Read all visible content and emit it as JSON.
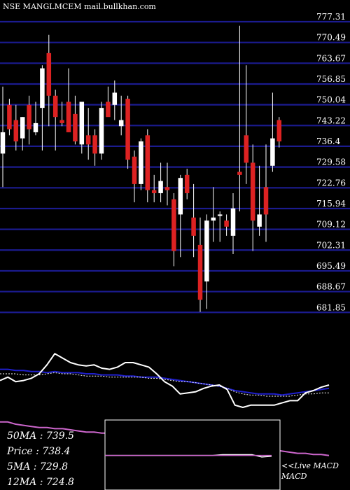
{
  "header": {
    "title": "NSE MANGLMCEM mail.bullkhan.com"
  },
  "chart_data": [
    {
      "type": "candlestick",
      "title": "NSE MANGLMCEM mail.bullkhan.com",
      "ylim": [
        678,
        778
      ],
      "y_ticks": [
        "777.31",
        "770.49",
        "763.67",
        "756.85",
        "750.04",
        "743.22",
        "736.4",
        "729.58",
        "722.76",
        "715.94",
        "709.12",
        "702.31",
        "695.49",
        "688.67",
        "681.85"
      ],
      "grid": true,
      "candles": [
        {
          "open": 734,
          "high": 756,
          "low": 723,
          "close": 741,
          "color": "white"
        },
        {
          "open": 750,
          "high": 752,
          "low": 740,
          "close": 742,
          "color": "red"
        },
        {
          "open": 745,
          "high": 750,
          "low": 735,
          "close": 738,
          "color": "red"
        },
        {
          "open": 739,
          "high": 746,
          "low": 735,
          "close": 746,
          "color": "white"
        },
        {
          "open": 750,
          "high": 753,
          "low": 737,
          "close": 742,
          "color": "red"
        },
        {
          "open": 741,
          "high": 751,
          "low": 740,
          "close": 744,
          "color": "white"
        },
        {
          "open": 749,
          "high": 763,
          "low": 735,
          "close": 762,
          "color": "white"
        },
        {
          "open": 767,
          "high": 773,
          "low": 743,
          "close": 753,
          "color": "red"
        },
        {
          "open": 753,
          "high": 755,
          "low": 735,
          "close": 746,
          "color": "red"
        },
        {
          "open": 744,
          "high": 751,
          "low": 743,
          "close": 745,
          "color": "red"
        },
        {
          "open": 751,
          "high": 762,
          "low": 741,
          "close": 741,
          "color": "red"
        },
        {
          "open": 747,
          "high": 753,
          "low": 737,
          "close": 738,
          "color": "red"
        },
        {
          "open": 737,
          "high": 750,
          "low": 734,
          "close": 751,
          "color": "white"
        },
        {
          "open": 737,
          "high": 749,
          "low": 732,
          "close": 740,
          "color": "red"
        },
        {
          "open": 740,
          "high": 742,
          "low": 730,
          "close": 734,
          "color": "red"
        },
        {
          "open": 734,
          "high": 751,
          "low": 732,
          "close": 749,
          "color": "white"
        },
        {
          "open": 751,
          "high": 756,
          "low": 747,
          "close": 746,
          "color": "red"
        },
        {
          "open": 750,
          "high": 758,
          "low": 745,
          "close": 754,
          "color": "white"
        },
        {
          "open": 745,
          "high": 753,
          "low": 740,
          "close": 743,
          "color": "white"
        },
        {
          "open": 752,
          "high": 753,
          "low": 729,
          "close": 732,
          "color": "red"
        },
        {
          "open": 733,
          "high": 735,
          "low": 718,
          "close": 724,
          "color": "red"
        },
        {
          "open": 724,
          "high": 739,
          "low": 722,
          "close": 738,
          "color": "white"
        },
        {
          "open": 740,
          "high": 742,
          "low": 718,
          "close": 722,
          "color": "red"
        },
        {
          "open": 722,
          "high": 727,
          "low": 718,
          "close": 721,
          "color": "red"
        },
        {
          "open": 725,
          "high": 731,
          "low": 718,
          "close": 721,
          "color": "white"
        },
        {
          "open": 723,
          "high": 731,
          "low": 717,
          "close": 722,
          "color": "red"
        },
        {
          "open": 719,
          "high": 721,
          "low": 697,
          "close": 702,
          "color": "red"
        },
        {
          "open": 714,
          "high": 727,
          "low": 700,
          "close": 726,
          "color": "white"
        },
        {
          "open": 727,
          "high": 729,
          "low": 719,
          "close": 721,
          "color": "red"
        },
        {
          "open": 713,
          "high": 724,
          "low": 700,
          "close": 707,
          "color": "red"
        },
        {
          "open": 704,
          "high": 713,
          "low": 682,
          "close": 686,
          "color": "red"
        },
        {
          "open": 692,
          "high": 714,
          "low": 683,
          "close": 712,
          "color": "white"
        },
        {
          "open": 712,
          "high": 723,
          "low": 705,
          "close": 713,
          "color": "white"
        },
        {
          "open": 714,
          "high": 715,
          "low": 705,
          "close": 714,
          "color": "white"
        },
        {
          "open": 712,
          "high": 714,
          "low": 707,
          "close": 710,
          "color": "red"
        },
        {
          "open": 707,
          "high": 721,
          "low": 701,
          "close": 716,
          "color": "white"
        },
        {
          "open": 727,
          "high": 776,
          "low": 715,
          "close": 728,
          "color": "red"
        },
        {
          "open": 740,
          "high": 763,
          "low": 724,
          "close": 731,
          "color": "red"
        },
        {
          "open": 731,
          "high": 737,
          "low": 702,
          "close": 712,
          "color": "red"
        },
        {
          "open": 710,
          "high": 730,
          "low": 707,
          "close": 714,
          "color": "white"
        },
        {
          "open": 723,
          "high": 737,
          "low": 705,
          "close": 714,
          "color": "red"
        },
        {
          "open": 730,
          "high": 754,
          "low": 728,
          "close": 739,
          "color": "white"
        },
        {
          "open": 745,
          "high": 746,
          "low": 736,
          "close": 738,
          "color": "red"
        }
      ]
    },
    {
      "type": "line",
      "panel": "moving-averages",
      "series": [
        {
          "color": "#cc66cc",
          "values": [
            83,
            83,
            85,
            86,
            87,
            88,
            88,
            89,
            89,
            90,
            91,
            92,
            92,
            93,
            93,
            94,
            94,
            95,
            95,
            96,
            96,
            97,
            98,
            98,
            99,
            100,
            101,
            101,
            102,
            103,
            104,
            105,
            106,
            107,
            108,
            108,
            109,
            110,
            111,
            111,
            112,
            112,
            113
          ]
        },
        {
          "color": "#1f1fcc",
          "values": [
            36,
            36,
            37,
            37,
            38,
            38,
            39,
            38,
            39,
            39,
            39,
            40,
            40,
            41,
            41,
            41,
            42,
            42,
            43,
            43,
            43,
            44,
            45,
            46,
            47,
            48,
            49,
            50,
            51,
            53,
            55,
            56,
            57,
            58,
            58,
            58,
            59,
            58,
            57,
            56,
            55,
            54,
            53
          ]
        },
        {
          "color": "#ffffff",
          "values": [
            46,
            43,
            47,
            46,
            44,
            40,
            32,
            22,
            26,
            30,
            32,
            33,
            32,
            35,
            36,
            34,
            30,
            30,
            32,
            34,
            40,
            47,
            51,
            58,
            57,
            56,
            53,
            51,
            50,
            54,
            68,
            70,
            68,
            68,
            68,
            68,
            66,
            64,
            64,
            57,
            55,
            52,
            50
          ]
        },
        {
          "color": "#ffffff",
          "width": 1,
          "dash": "2,2",
          "values": [
            40,
            40,
            40,
            41,
            41,
            41,
            40,
            39,
            40,
            40,
            41,
            42,
            42,
            42,
            43,
            43,
            43,
            43,
            43,
            44,
            44,
            45,
            46,
            47,
            47,
            48,
            49,
            50,
            51,
            53,
            56,
            58,
            59,
            59,
            60,
            60,
            60,
            60,
            59,
            58,
            58,
            57,
            57
          ]
        }
      ]
    },
    {
      "type": "line",
      "panel": "macd",
      "legend": "<<Live MACD",
      "series": [
        {
          "color": "#ffffff",
          "values": [
            44,
            44,
            44,
            44,
            44,
            44,
            44,
            44,
            44,
            44,
            44,
            44,
            43,
            43,
            43,
            43,
            46,
            45
          ]
        },
        {
          "color": "#cc66cc",
          "values": [
            44,
            44,
            44,
            44,
            44,
            44,
            44,
            44,
            44,
            44,
            44,
            44,
            44,
            44,
            44,
            44,
            44,
            44
          ]
        }
      ]
    }
  ],
  "info": {
    "ma50": "50MA : 739.5",
    "price": "Price  : 738.4",
    "ma5": "5MA : 729.8",
    "ma12": "12MA : 724.8"
  }
}
